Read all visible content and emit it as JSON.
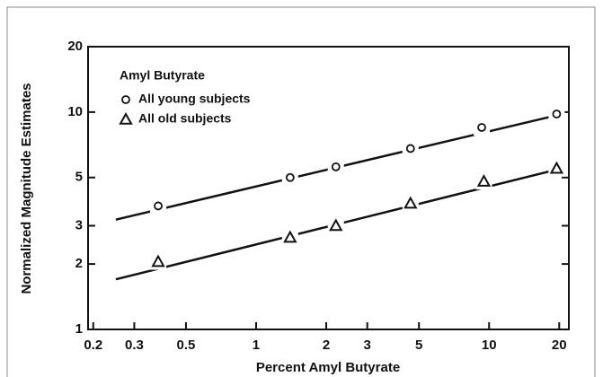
{
  "chart_data": {
    "type": "scatter",
    "legend_title": "Amyl Butyrate",
    "x_label": "Percent Amyl Butyrate",
    "y_label": "Normalized Magnitude Estimates",
    "log_x": true,
    "log_y": true,
    "xlim": [
      0.19,
      22
    ],
    "ylim": [
      1,
      20
    ],
    "xticks": [
      0.2,
      0.3,
      0.5,
      1,
      2,
      3,
      5,
      10,
      20
    ],
    "yticks": [
      1,
      2,
      3,
      5,
      10,
      20
    ],
    "legend": "upper left",
    "series": [
      {
        "name": "All young subjects",
        "marker": "circle",
        "color": "#111111",
        "x": [
          0.38,
          1.4,
          2.2,
          4.6,
          9.3,
          19.5
        ],
        "values": [
          3.7,
          5.0,
          5.6,
          6.8,
          8.5,
          9.8
        ],
        "fit": {
          "x": [
            0.25,
            19
          ],
          "values": [
            3.2,
            9.6
          ]
        }
      },
      {
        "name": "All old subjects",
        "marker": "triangle",
        "color": "#111111",
        "x": [
          0.38,
          1.4,
          2.2,
          4.6,
          9.5,
          19.5
        ],
        "values": [
          2.05,
          2.65,
          3.0,
          3.8,
          4.8,
          5.5
        ],
        "fit": {
          "x": [
            0.25,
            19
          ],
          "values": [
            1.7,
            5.4
          ]
        }
      }
    ]
  }
}
